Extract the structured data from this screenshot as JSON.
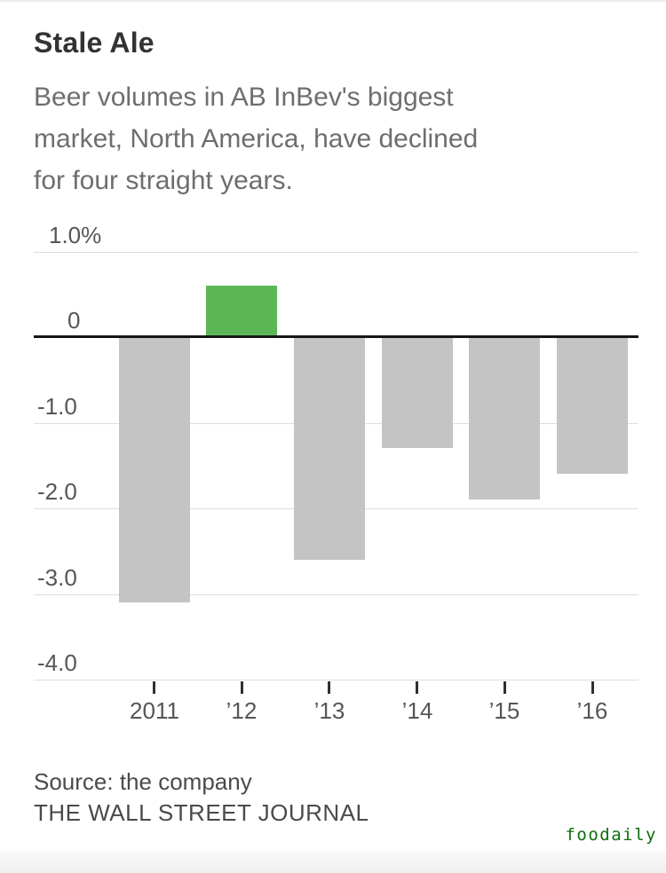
{
  "chart_data": {
    "type": "bar",
    "title": "Stale Ale",
    "subtitle": "Beer volumes in AB InBev's biggest market, North America, have declined for four straight years.",
    "subtitle_lines": [
      "Beer volumes in AB InBev's biggest",
      "market, North America, have declined",
      "for four straight years."
    ],
    "categories": [
      "2011",
      "’12",
      "’13",
      "’14",
      "’15",
      "’16"
    ],
    "values": [
      -3.1,
      0.6,
      -2.6,
      -1.3,
      -1.9,
      -1.6
    ],
    "unit": "%",
    "xlabel": "",
    "ylabel": "",
    "y_ticks": [
      "1.0%",
      "0",
      "-1.0",
      "-2.0",
      "-3.0",
      "-4.0"
    ],
    "y_tick_values": [
      1.0,
      0,
      -1.0,
      -2.0,
      -3.0,
      -4.0
    ],
    "ylim": [
      -4.0,
      1.0
    ],
    "grid": true,
    "legend": "none",
    "colors": {
      "positive": "#5bb755",
      "negative": "#c4c4c4",
      "gridline": "#dedede",
      "zero_line": "#161616",
      "axis_text": "#565656"
    },
    "source": "Source: the company",
    "credit": "THE WALL STREET JOURNAL"
  },
  "watermark": {
    "text": "foodaily",
    "color": "#0d6e0d"
  }
}
